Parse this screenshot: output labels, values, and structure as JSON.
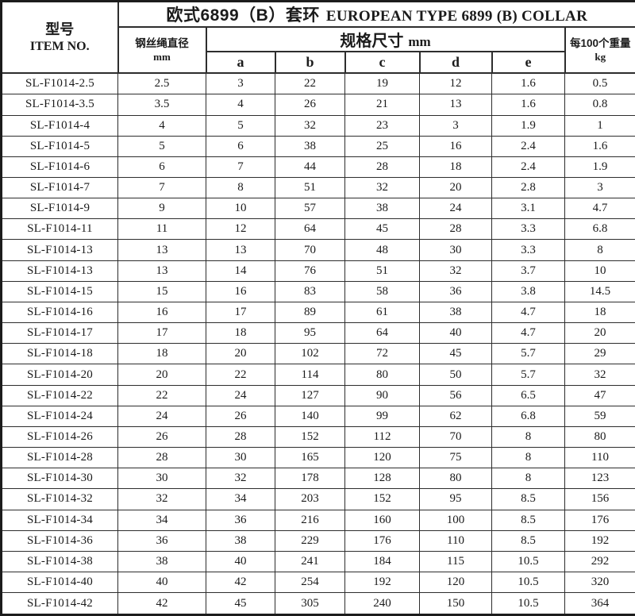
{
  "title": {
    "cn": "欧式6899（B）套环",
    "en": "EUROPEAN TYPE 6899 (B) COLLAR"
  },
  "header": {
    "item_no": {
      "cn": "型号",
      "en": "ITEM NO."
    },
    "diameter": {
      "cn": "钢丝绳直径",
      "unit": "mm"
    },
    "spec": {
      "cn": "规格尺寸",
      "unit": "mm"
    },
    "weight": {
      "cn": "每100个重量",
      "unit": "kg"
    },
    "dims": [
      "a",
      "b",
      "c",
      "d",
      "e"
    ]
  },
  "columns": [
    "item_no",
    "wire_rope_diameter_mm",
    "a",
    "b",
    "c",
    "d",
    "e",
    "weight_per_100_kg"
  ],
  "rows": [
    [
      "SL-F1014-2.5",
      "2.5",
      "3",
      "22",
      "19",
      "12",
      "1.6",
      "0.5"
    ],
    [
      "SL-F1014-3.5",
      "3.5",
      "4",
      "26",
      "21",
      "13",
      "1.6",
      "0.8"
    ],
    [
      "SL-F1014-4",
      "4",
      "5",
      "32",
      "23",
      "3",
      "1.9",
      "1"
    ],
    [
      "SL-F1014-5",
      "5",
      "6",
      "38",
      "25",
      "16",
      "2.4",
      "1.6"
    ],
    [
      "SL-F1014-6",
      "6",
      "7",
      "44",
      "28",
      "18",
      "2.4",
      "1.9"
    ],
    [
      "SL-F1014-7",
      "7",
      "8",
      "51",
      "32",
      "20",
      "2.8",
      "3"
    ],
    [
      "SL-F1014-9",
      "9",
      "10",
      "57",
      "38",
      "24",
      "3.1",
      "4.7"
    ],
    [
      "SL-F1014-11",
      "11",
      "12",
      "64",
      "45",
      "28",
      "3.3",
      "6.8"
    ],
    [
      "SL-F1014-13",
      "13",
      "13",
      "70",
      "48",
      "30",
      "3.3",
      "8"
    ],
    [
      "SL-F1014-13",
      "13",
      "14",
      "76",
      "51",
      "32",
      "3.7",
      "10"
    ],
    [
      "SL-F1014-15",
      "15",
      "16",
      "83",
      "58",
      "36",
      "3.8",
      "14.5"
    ],
    [
      "SL-F1014-16",
      "16",
      "17",
      "89",
      "61",
      "38",
      "4.7",
      "18"
    ],
    [
      "SL-F1014-17",
      "17",
      "18",
      "95",
      "64",
      "40",
      "4.7",
      "20"
    ],
    [
      "SL-F1014-18",
      "18",
      "20",
      "102",
      "72",
      "45",
      "5.7",
      "29"
    ],
    [
      "SL-F1014-20",
      "20",
      "22",
      "114",
      "80",
      "50",
      "5.7",
      "32"
    ],
    [
      "SL-F1014-22",
      "22",
      "24",
      "127",
      "90",
      "56",
      "6.5",
      "47"
    ],
    [
      "SL-F1014-24",
      "24",
      "26",
      "140",
      "99",
      "62",
      "6.8",
      "59"
    ],
    [
      "SL-F1014-26",
      "26",
      "28",
      "152",
      "112",
      "70",
      "8",
      "80"
    ],
    [
      "SL-F1014-28",
      "28",
      "30",
      "165",
      "120",
      "75",
      "8",
      "110"
    ],
    [
      "SL-F1014-30",
      "30",
      "32",
      "178",
      "128",
      "80",
      "8",
      "123"
    ],
    [
      "SL-F1014-32",
      "32",
      "34",
      "203",
      "152",
      "95",
      "8.5",
      "156"
    ],
    [
      "SL-F1014-34",
      "34",
      "36",
      "216",
      "160",
      "100",
      "8.5",
      "176"
    ],
    [
      "SL-F1014-36",
      "36",
      "38",
      "229",
      "176",
      "110",
      "8.5",
      "192"
    ],
    [
      "SL-F1014-38",
      "38",
      "40",
      "241",
      "184",
      "115",
      "10.5",
      "292"
    ],
    [
      "SL-F1014-40",
      "40",
      "42",
      "254",
      "192",
      "120",
      "10.5",
      "320"
    ],
    [
      "SL-F1014-42",
      "42",
      "45",
      "305",
      "240",
      "150",
      "10.5",
      "364"
    ]
  ],
  "colors": {
    "border": "#2d2d2d",
    "text": "#1b1b1b",
    "background": "#ffffff"
  }
}
